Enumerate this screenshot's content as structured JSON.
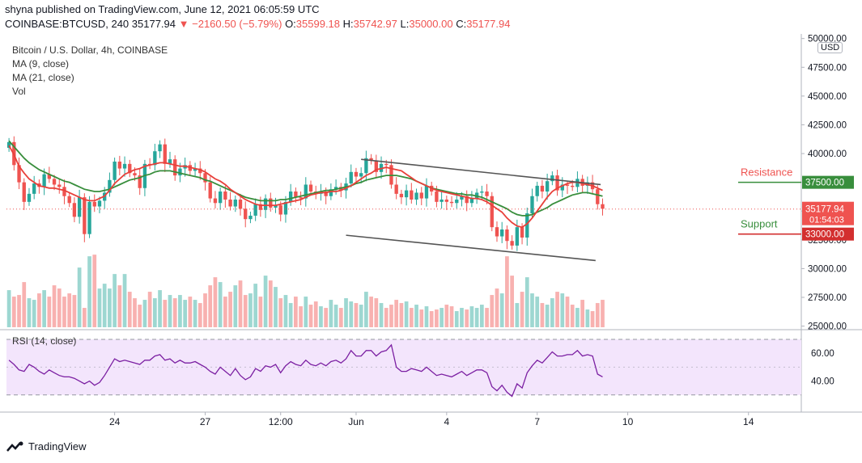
{
  "header": {
    "published": "shyna published on TradingView.com, June 12, 2021 06:05:59 UTC",
    "symbol": "COINBASE:BTCUSD, 240",
    "last": "35177.94",
    "change": "▼ −2160.50 (−5.79%)",
    "o_label": "O:",
    "o": "35599.18",
    "h_label": "H:",
    "h": "35742.97",
    "l_label": "L:",
    "l": "35000.00",
    "c_label": "C:",
    "c": "35177.94"
  },
  "legend": {
    "title": "Bitcoin / U.S. Dollar, 4h, COINBASE",
    "ma9": "MA (9, close)",
    "ma21": "MA (21, close)",
    "vol": "Vol",
    "rsi": "RSI (14, close)"
  },
  "currency": "USD",
  "brand": "TradingView",
  "colors": {
    "up": "#26a69a",
    "down": "#ef5350",
    "ma9": "#e8403a",
    "ma21": "#388e3c",
    "resistance": "#388e3c",
    "support": "#d32f2f",
    "rsi": "#7b1fa2",
    "rsi_band": "#f3e5fc"
  },
  "chart_data": {
    "type": "candlestick",
    "price_ticks": [
      25000,
      27500,
      30000,
      32500,
      35000,
      37500,
      40000,
      42500,
      45000,
      47500,
      50000
    ],
    "price_tick_labels": [
      "25000.00",
      "27500.00",
      "30000.00",
      "32500.00",
      "35000.00",
      "37500.00",
      "40000.00",
      "42500.00",
      "45000.00",
      "47500.00",
      "50000.00"
    ],
    "ylim": [
      24900,
      50400
    ],
    "rsi_ticks": [
      40,
      60
    ],
    "rsi_tick_labels": [
      "40.00",
      "60.00"
    ],
    "rsi_band": [
      30,
      70
    ],
    "x_ticks": [
      {
        "label": "24",
        "bar": 21
      },
      {
        "label": "27",
        "bar": 39
      },
      {
        "label": "12:00",
        "bar": 54
      },
      {
        "label": "Jun",
        "bar": 69
      },
      {
        "label": "4",
        "bar": 87
      },
      {
        "label": "7",
        "bar": 105
      },
      {
        "label": "10",
        "bar": 123
      },
      {
        "label": "14",
        "bar": 147
      }
    ],
    "total_slots": 158,
    "closes": [
      41000,
      39000,
      37500,
      35800,
      36500,
      37400,
      37100,
      38200,
      37800,
      37300,
      37100,
      36300,
      35700,
      34500,
      36200,
      33000,
      35800,
      35400,
      35900,
      36600,
      37700,
      39300,
      38700,
      39100,
      38300,
      38100,
      37000,
      39100,
      39000,
      40200,
      40800,
      39100,
      39500,
      38100,
      38700,
      39000,
      38500,
      38700,
      38300,
      37500,
      36100,
      35700,
      36700,
      36000,
      35400,
      36000,
      35200,
      34300,
      34600,
      35600,
      35100,
      36100,
      35300,
      35500,
      34700,
      35800,
      36700,
      36200,
      36100,
      37300,
      36700,
      36500,
      36700,
      36300,
      36900,
      37100,
      36800,
      37400,
      38400,
      38000,
      38300,
      39600,
      39400,
      38400,
      39100,
      39000,
      37300,
      36500,
      36200,
      36800,
      36000,
      36600,
      36100,
      37200,
      36700,
      35800,
      36000,
      35800,
      35700,
      36000,
      36300,
      35700,
      36100,
      36600,
      36700,
      36300,
      33600,
      32800,
      33400,
      32400,
      32000,
      33600,
      32700,
      34800,
      36300,
      37200,
      36700,
      37600,
      38100,
      36800,
      37300,
      37200,
      37100,
      37800,
      37200,
      37500,
      36900,
      35600,
      35200
    ],
    "ma9": [
      40700,
      39900,
      38900,
      38300,
      37800,
      37500,
      37200,
      37100,
      37000,
      37000,
      36900,
      36800,
      36600,
      36400,
      36200,
      36000,
      35900,
      35900,
      36100,
      36300,
      36800,
      37400,
      37800,
      38200,
      38400,
      38600,
      38700,
      38900,
      39000,
      39100,
      39200,
      39200,
      39100,
      39000,
      38900,
      38900,
      38800,
      38700,
      38600,
      38400,
      38100,
      37800,
      37600,
      37300,
      36900,
      36600,
      36300,
      36000,
      35800,
      35600,
      35500,
      35500,
      35500,
      35500,
      35600,
      35700,
      35800,
      35900,
      36000,
      36200,
      36400,
      36500,
      36600,
      36600,
      36700,
      36700,
      36800,
      37000,
      37200,
      37500,
      37800,
      38100,
      38300,
      38600,
      38700,
      38800,
      38700,
      38600,
      38500,
      38200,
      37900,
      37600,
      37400,
      37200,
      37000,
      36800,
      36700,
      36600,
      36500,
      36400,
      36300,
      36200,
      36100,
      36100,
      36000,
      35800,
      35500,
      35200,
      34900,
      34400,
      34000,
      33700,
      33600,
      33900,
      34400,
      35000,
      35600,
      36200,
      36700,
      37000,
      37200,
      37400,
      37500,
      37500,
      37400,
      37300,
      37200,
      37000,
      36800
    ],
    "ma21": [
      41100,
      40600,
      40100,
      39600,
      39200,
      38900,
      38600,
      38400,
      38200,
      38000,
      37800,
      37600,
      37500,
      37300,
      37100,
      36900,
      36800,
      36700,
      36700,
      36800,
      36900,
      37100,
      37300,
      37500,
      37700,
      37800,
      37900,
      38100,
      38200,
      38400,
      38500,
      38500,
      38500,
      38400,
      38300,
      38200,
      38100,
      38000,
      37900,
      37700,
      37600,
      37400,
      37200,
      37000,
      36800,
      36600,
      36400,
      36200,
      36100,
      36000,
      35900,
      35900,
      35900,
      35900,
      36000,
      36000,
      36100,
      36200,
      36300,
      36400,
      36500,
      36600,
      36700,
      36800,
      36800,
      36900,
      37000,
      37100,
      37200,
      37400,
      37500,
      37700,
      37800,
      37900,
      38000,
      38100,
      38100,
      38100,
      38000,
      37900,
      37800,
      37600,
      37400,
      37200,
      37000,
      36900,
      36800,
      36700,
      36600,
      36500,
      36500,
      36400,
      36400,
      36300,
      36200,
      36000,
      35800,
      35600,
      35400,
      35200,
      34900,
      34700,
      34600,
      34600,
      34700,
      34900,
      35100,
      35300,
      35600,
      35800,
      36000,
      36200,
      36400,
      36500,
      36600,
      36600,
      36500,
      36400,
      36300
    ],
    "volume": [
      23,
      19,
      20,
      28,
      18,
      17,
      21,
      23,
      19,
      26,
      24,
      19,
      21,
      20,
      37,
      12,
      44,
      45,
      24,
      27,
      24,
      33,
      26,
      33,
      22,
      18,
      14,
      17,
      22,
      18,
      23,
      17,
      20,
      18,
      20,
      17,
      19,
      17,
      15,
      21,
      26,
      31,
      28,
      19,
      22,
      26,
      29,
      20,
      21,
      27,
      19,
      32,
      29,
      25,
      18,
      20,
      15,
      19,
      13,
      19,
      14,
      16,
      13,
      12,
      17,
      14,
      12,
      18,
      16,
      15,
      14,
      22,
      19,
      18,
      15,
      12,
      14,
      17,
      15,
      16,
      12,
      14,
      11,
      13,
      10,
      11,
      12,
      14,
      13,
      10,
      12,
      11,
      13,
      12,
      14,
      12,
      20,
      24,
      21,
      44,
      32,
      15,
      22,
      31,
      21,
      19,
      15,
      14,
      18,
      22,
      21,
      19,
      14,
      12,
      17,
      11,
      10,
      15,
      17
    ],
    "rsi": [
      55,
      52,
      48,
      47,
      52,
      50,
      47,
      45,
      48,
      46,
      44,
      43,
      43,
      42,
      40,
      38,
      40,
      37,
      39,
      44,
      50,
      56,
      54,
      55,
      54,
      53,
      52,
      55,
      55,
      58,
      59,
      55,
      56,
      53,
      55,
      53,
      53,
      54,
      52,
      50,
      47,
      45,
      50,
      47,
      44,
      49,
      44,
      41,
      43,
      49,
      47,
      51,
      50,
      52,
      46,
      51,
      54,
      52,
      51,
      55,
      52,
      51,
      53,
      51,
      54,
      55,
      53,
      56,
      62,
      58,
      58,
      62,
      62,
      58,
      61,
      62,
      66,
      50,
      47,
      47,
      49,
      48,
      47,
      50,
      47,
      44,
      45,
      44,
      43,
      45,
      47,
      44,
      46,
      48,
      48,
      46,
      36,
      33,
      37,
      32,
      29,
      38,
      35,
      46,
      51,
      55,
      53,
      57,
      61,
      58,
      58,
      59,
      59,
      62,
      58,
      59,
      58,
      45,
      43
    ],
    "resistance_channel": {
      "label": "Resistance",
      "level": 37500,
      "level_label": "37500.00",
      "start": [
        70,
        39500
      ],
      "end": [
        116,
        37300
      ]
    },
    "support_channel": {
      "label": "Support",
      "level": 33000,
      "level_label": "33000.00",
      "start": [
        67,
        32900
      ],
      "end": [
        115,
        30700
      ]
    },
    "last_price": {
      "value": 35177.94,
      "label": "35177.94",
      "countdown": "01:54:03"
    }
  }
}
